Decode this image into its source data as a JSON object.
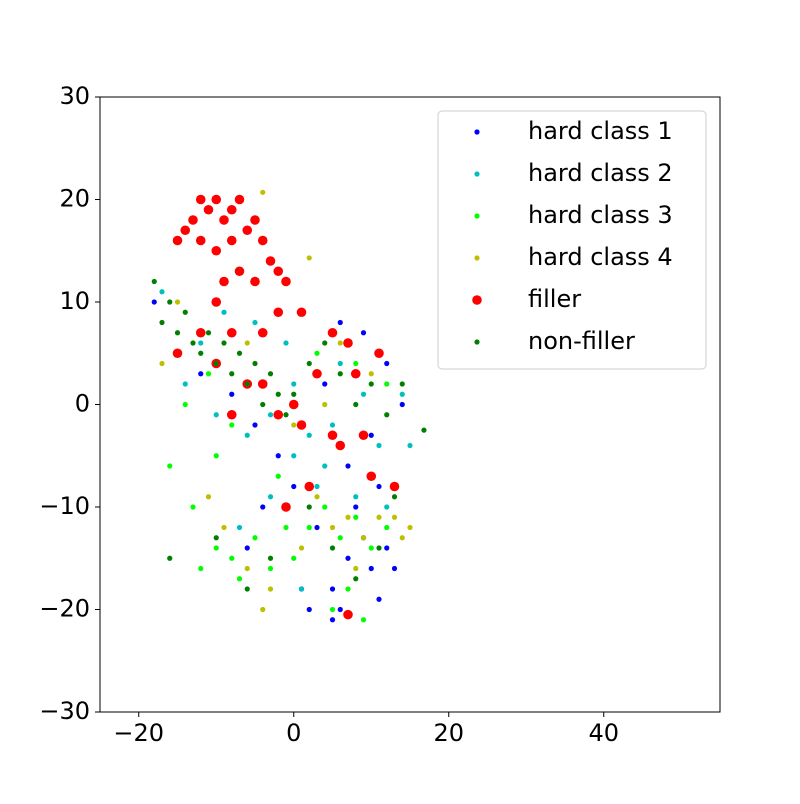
{
  "chart_data": {
    "type": "scatter",
    "xlim": [
      -25,
      55
    ],
    "ylim": [
      -30,
      30
    ],
    "xticks": [
      {
        "value": -20,
        "label": "−20"
      },
      0,
      20,
      40
    ],
    "yticks": [
      {
        "value": -30,
        "label": "−30"
      },
      {
        "value": -20,
        "label": "−20"
      },
      {
        "value": -10,
        "label": "−10"
      },
      0,
      10,
      20,
      30
    ],
    "legend": "upper right",
    "series": [
      {
        "name": "hard class 1",
        "color": "#0000ff",
        "x": [
          -18,
          -15,
          -12,
          -8,
          -5,
          -2,
          0,
          2,
          3,
          5,
          6,
          7,
          8,
          9,
          10,
          11,
          12,
          13,
          6,
          9,
          12,
          14,
          10,
          4,
          -6,
          -4,
          1,
          5,
          7,
          11
        ],
        "values": [
          10,
          5,
          3,
          1,
          -2,
          -5,
          -8,
          -20,
          -12,
          -18,
          -20,
          -15,
          -10,
          -13,
          -16,
          -19,
          -14,
          -16,
          8,
          7,
          4,
          0,
          -3,
          2,
          -14,
          -10,
          -18,
          -21,
          -6,
          -8
        ]
      },
      {
        "name": "hard class 2",
        "color": "#00bfbf",
        "x": [
          -17,
          -14,
          -10,
          -6,
          -3,
          0,
          2,
          4,
          1,
          3,
          8,
          11,
          15,
          12,
          -5,
          -1,
          6,
          9,
          -9,
          -12,
          0,
          5,
          14,
          -7,
          -3
        ],
        "values": [
          11,
          2,
          -1,
          -3,
          -1,
          -5,
          -3,
          -6,
          -18,
          -8,
          -9,
          -4,
          -4,
          -10,
          8,
          6,
          4,
          1,
          9,
          6,
          2,
          -2,
          1,
          -12,
          -9
        ]
      },
      {
        "name": "hard class 3",
        "color": "#00ff00",
        "x": [
          -16,
          -13,
          -10,
          -8,
          -7,
          -5,
          -3,
          -1,
          2,
          4,
          6,
          8,
          10,
          12,
          5,
          7,
          -14,
          -11,
          -8,
          -4,
          3,
          8,
          12,
          -10,
          -2,
          0,
          -12,
          9
        ],
        "values": [
          -6,
          -10,
          -14,
          -15,
          -17,
          -13,
          -16,
          -12,
          -12,
          -10,
          -13,
          -11,
          -14,
          -12,
          -20,
          -18,
          0,
          3,
          -2,
          2,
          5,
          4,
          2,
          -5,
          -7,
          -15,
          -16,
          -21
        ]
      },
      {
        "name": "hard class 4",
        "color": "#bfbf00",
        "x": [
          -17,
          -15,
          -11,
          -9,
          -6,
          -4,
          -3,
          -1,
          1,
          3,
          5,
          7,
          9,
          11,
          13,
          14,
          15,
          8,
          -4,
          2,
          6,
          10,
          -6,
          0,
          4
        ],
        "values": [
          4,
          10,
          -9,
          -12,
          -16,
          -20,
          -18,
          -10,
          -14,
          -9,
          -12,
          -11,
          -13,
          -11,
          -11,
          -13,
          -12,
          -16,
          20.7,
          14.3,
          6,
          3,
          6,
          -2,
          0
        ]
      },
      {
        "name": "filler",
        "color": "#ff0000",
        "x": [
          -12,
          -11,
          -10,
          -9,
          -8,
          -7,
          -13,
          -14,
          -12,
          -10,
          -8,
          -6,
          -5,
          -4,
          -3,
          -2,
          -1,
          -5,
          -7,
          -9,
          -10,
          -15,
          -2,
          1,
          -4,
          -8,
          -12,
          -15,
          -10,
          -6,
          -2,
          0,
          1,
          3,
          5,
          7,
          8,
          11,
          5,
          2,
          -1,
          6,
          9,
          10,
          13,
          7,
          -4,
          -8
        ],
        "values": [
          20,
          19,
          20,
          18,
          19,
          20,
          18,
          17,
          16,
          15,
          16,
          17,
          18,
          16,
          14,
          13,
          12,
          12,
          13,
          12,
          10,
          16,
          9,
          9,
          7,
          7,
          7,
          5,
          4,
          2,
          -1,
          0,
          -2,
          3,
          7,
          6,
          3,
          5,
          -3,
          -8,
          -10,
          -4,
          -3,
          -7,
          -8,
          -20.5,
          2,
          -1
        ]
      },
      {
        "name": "non-filler",
        "color": "#007f00",
        "x": [
          -18,
          -17,
          -16,
          -15,
          -14,
          -13,
          -12,
          -11,
          -10,
          -9,
          -8,
          -7,
          -6,
          -5,
          -4,
          -3,
          -2,
          -1,
          0,
          2,
          4,
          6,
          8,
          10,
          12,
          14,
          16.8,
          -10,
          -6,
          -3,
          2,
          5,
          8,
          11,
          13,
          -16
        ],
        "values": [
          12,
          8,
          10,
          7,
          9,
          6,
          5,
          7,
          4,
          6,
          3,
          5,
          2,
          4,
          0,
          3,
          1,
          -1,
          1,
          4,
          6,
          3,
          0,
          2,
          -1,
          2,
          -2.5,
          -13,
          -18,
          -15,
          -10,
          -14,
          -17,
          -14,
          -9,
          -15
        ]
      }
    ]
  }
}
